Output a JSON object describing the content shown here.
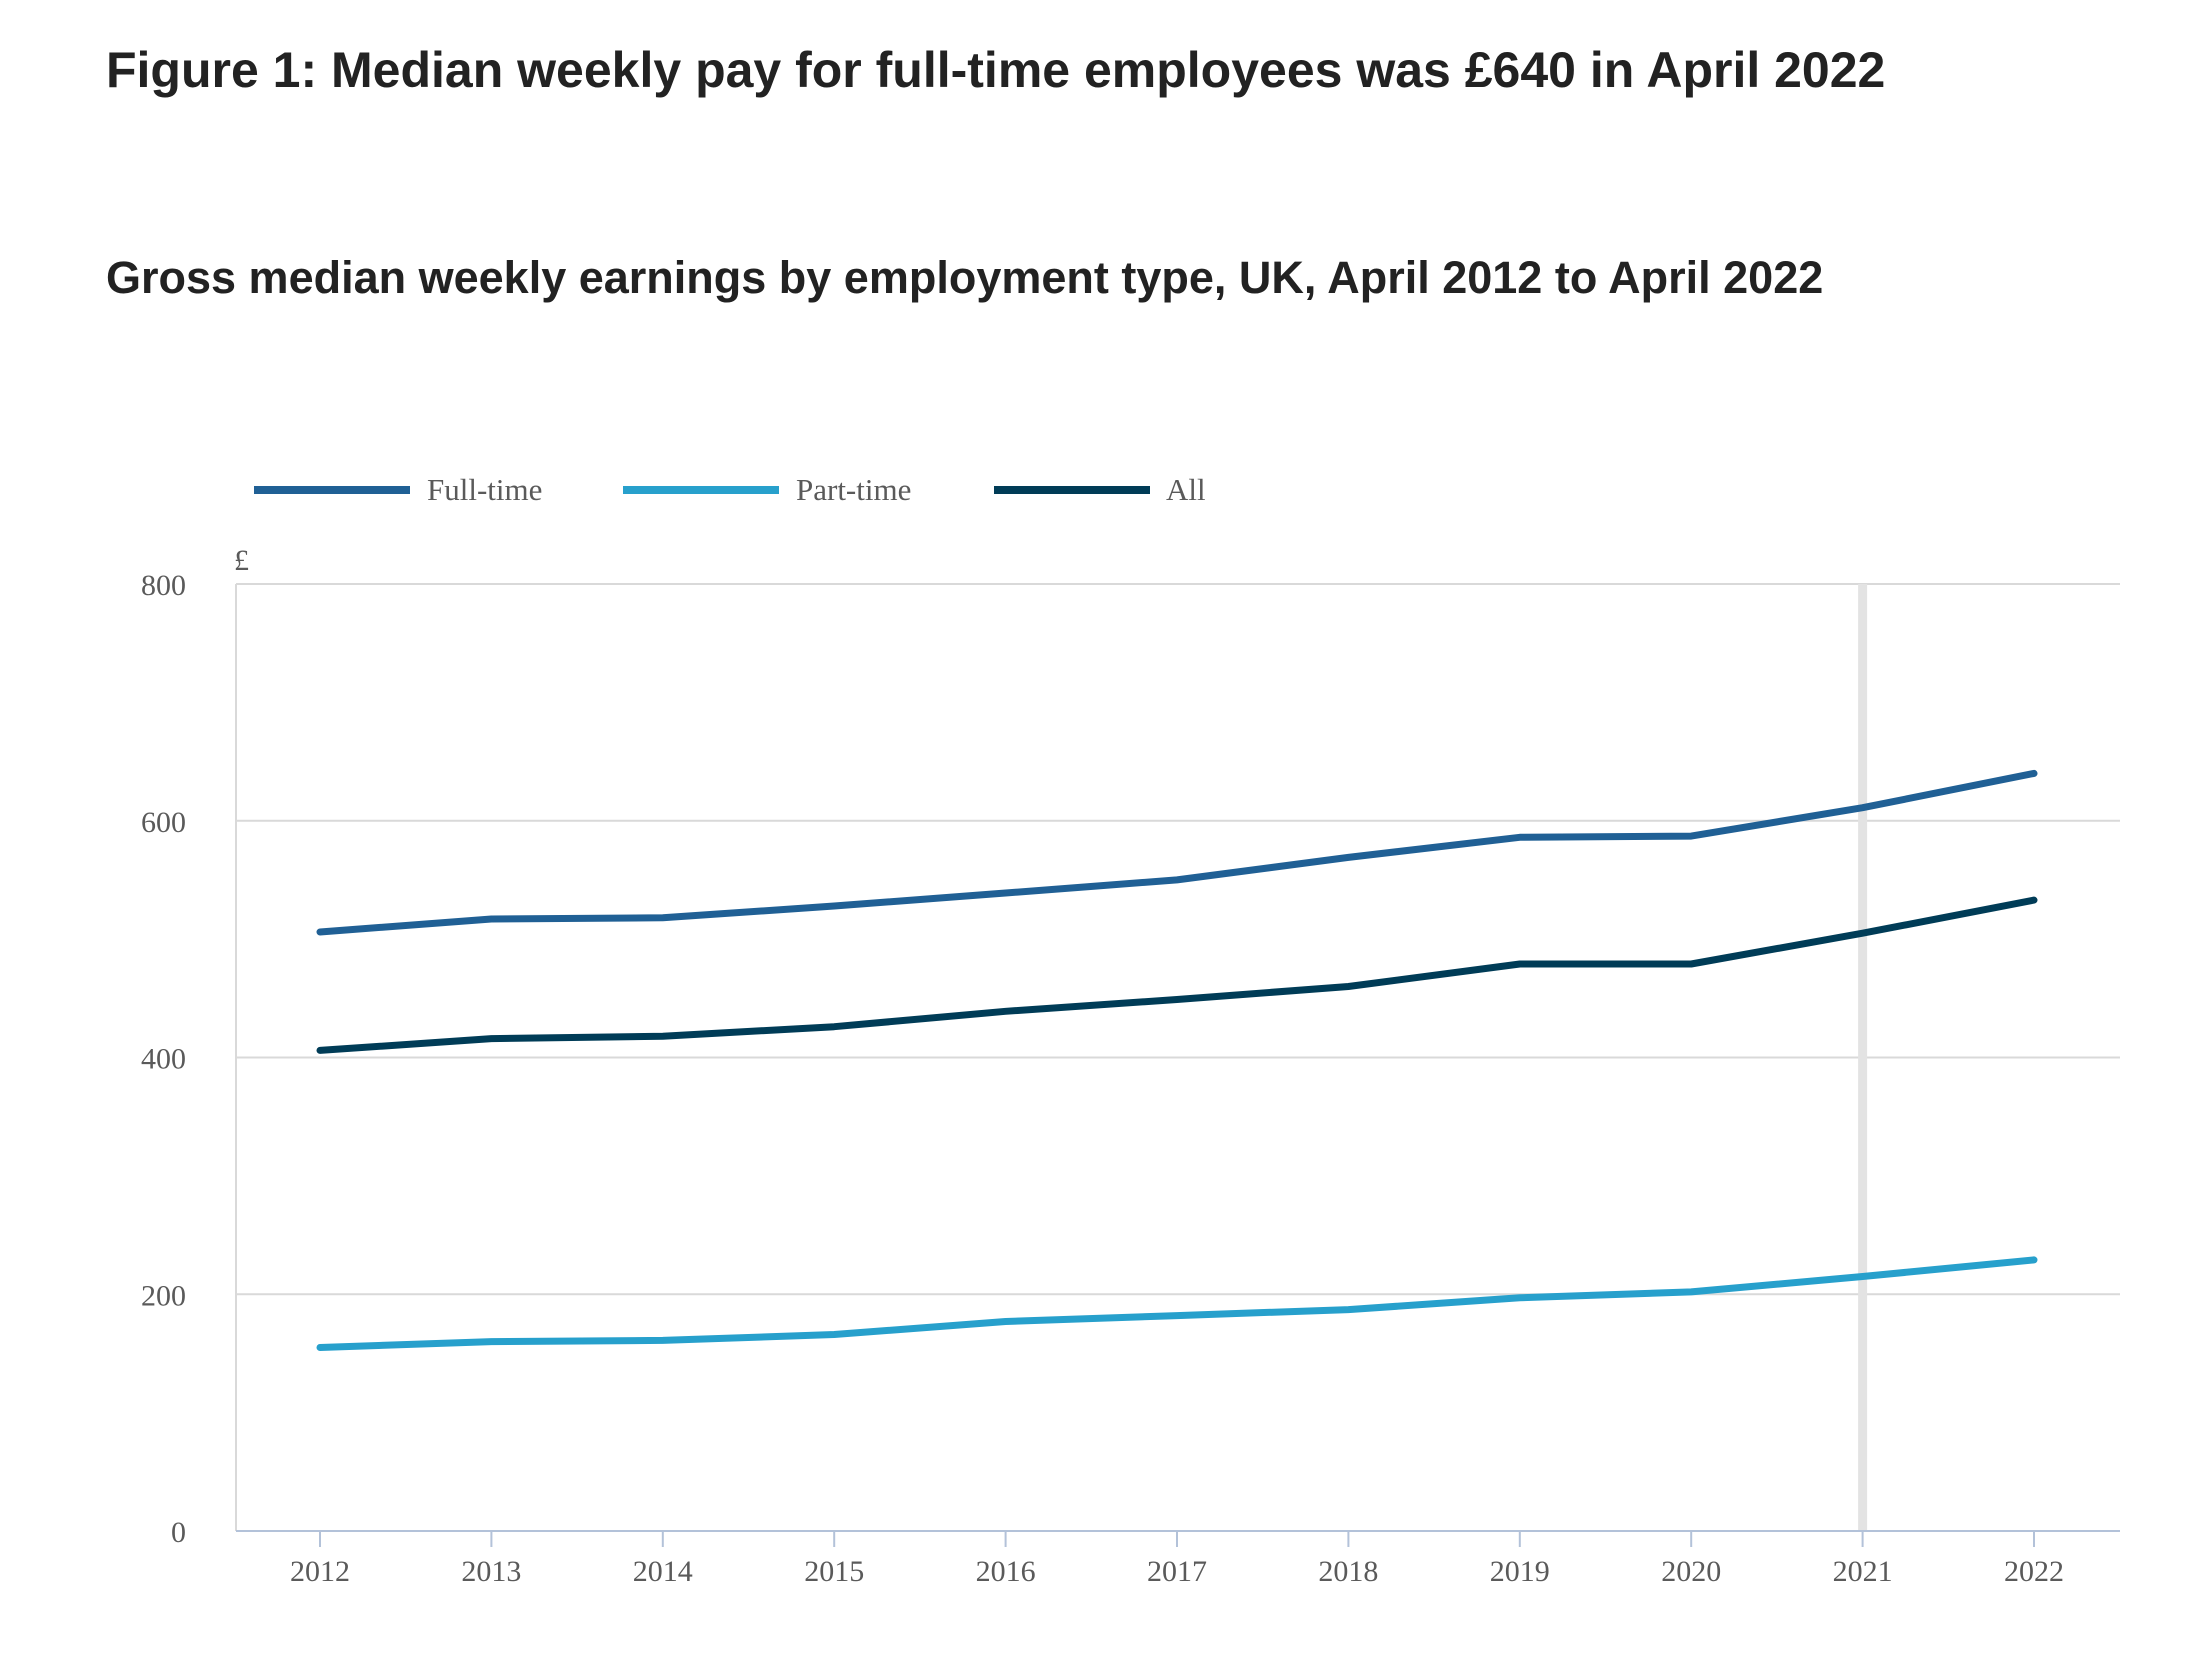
{
  "title": "Figure 1: Median weekly pay for full-time employees was £640 in April 2022",
  "subtitle": "Gross median weekly earnings by employment type, UK, April 2012 to April 2022",
  "chart_data": {
    "type": "line",
    "title": "Figure 1: Median weekly pay for full-time employees was £640 in April 2022",
    "subtitle": "Gross median weekly earnings by employment type, UK, April 2012 to April 2022",
    "xlabel": "",
    "ylabel": "£",
    "x": [
      "2012",
      "2013",
      "2014",
      "2015",
      "2016",
      "2017",
      "2018",
      "2019",
      "2020",
      "2021",
      "2022"
    ],
    "ylim": [
      0,
      800
    ],
    "yticks": [
      0,
      200,
      400,
      600,
      800
    ],
    "grid": true,
    "legend": "top-left",
    "highlight_x": "2021",
    "series": [
      {
        "name": "Full-time",
        "color": "#206095",
        "values": [
          506,
          517,
          518,
          528,
          539,
          550,
          569,
          586,
          587,
          611,
          640
        ]
      },
      {
        "name": "Part-time",
        "color": "#27a0cc",
        "values": [
          155,
          160,
          161,
          166,
          177,
          182,
          187,
          197,
          202,
          215,
          229
        ]
      },
      {
        "name": "All",
        "color": "#003c57",
        "values": [
          406,
          416,
          418,
          426,
          439,
          449,
          460,
          479,
          479,
          505,
          533
        ]
      }
    ]
  }
}
